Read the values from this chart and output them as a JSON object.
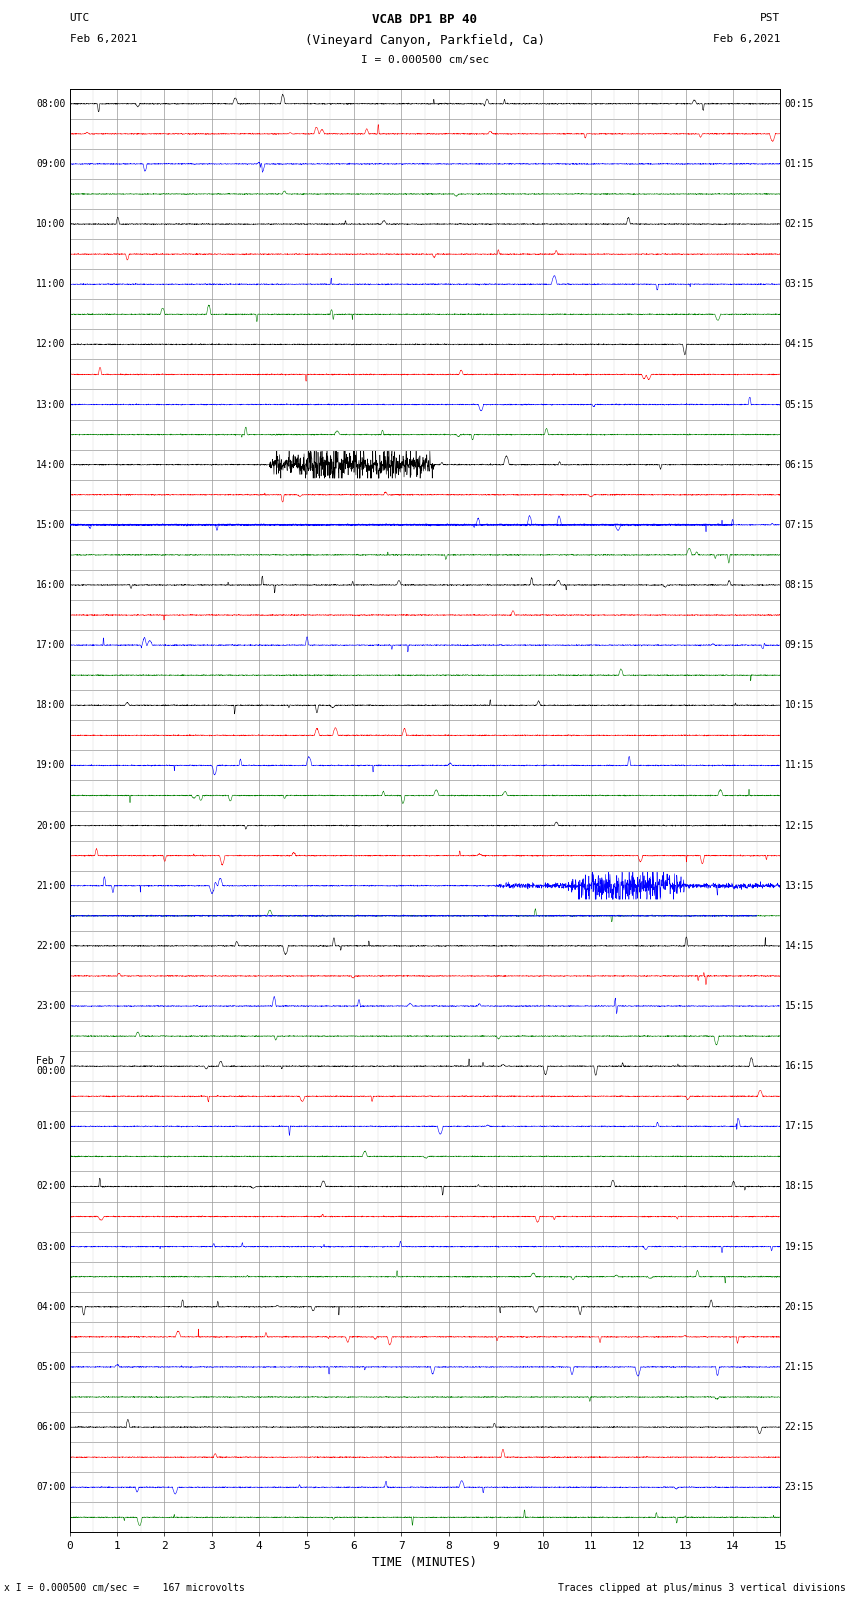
{
  "title_line1": "VCAB DP1 BP 40",
  "title_line2": "(Vineyard Canyon, Parkfield, Ca)",
  "scale_text": "I = 0.000500 cm/sec",
  "utc_label": "UTC",
  "utc_date": "Feb 6,2021",
  "pst_label": "PST",
  "pst_date": "Feb 6,2021",
  "xlabel": "TIME (MINUTES)",
  "bottom_left": "x I = 0.000500 cm/sec =    167 microvolts",
  "bottom_right": "Traces clipped at plus/minus 3 vertical divisions",
  "xlim": [
    0,
    15
  ],
  "x_ticks": [
    0,
    1,
    2,
    3,
    4,
    5,
    6,
    7,
    8,
    9,
    10,
    11,
    12,
    13,
    14,
    15
  ],
  "left_times": [
    "08:00",
    "",
    "09:00",
    "",
    "10:00",
    "",
    "11:00",
    "",
    "12:00",
    "",
    "13:00",
    "",
    "14:00",
    "",
    "15:00",
    "",
    "16:00",
    "",
    "17:00",
    "",
    "18:00",
    "",
    "19:00",
    "",
    "20:00",
    "",
    "21:00",
    "",
    "22:00",
    "",
    "23:00",
    "",
    "Feb 7\n00:00",
    "",
    "01:00",
    "",
    "02:00",
    "",
    "03:00",
    "",
    "04:00",
    "",
    "05:00",
    "",
    "06:00",
    "",
    "07:00",
    ""
  ],
  "right_times": [
    "00:15",
    "01:15",
    "02:15",
    "03:15",
    "04:15",
    "05:15",
    "06:15",
    "07:15",
    "08:15",
    "09:15",
    "10:15",
    "11:15",
    "12:15",
    "13:15",
    "14:15",
    "15:15",
    "16:15",
    "17:15",
    "18:15",
    "19:15",
    "20:15",
    "21:15",
    "22:15",
    "23:15"
  ],
  "n_rows": 48,
  "colors_cycle": [
    "black",
    "red",
    "blue",
    "green"
  ],
  "fig_width": 8.5,
  "fig_height": 16.13,
  "dpi": 100,
  "lm": 0.082,
  "rm": 0.082,
  "tm": 0.055,
  "bm": 0.05
}
